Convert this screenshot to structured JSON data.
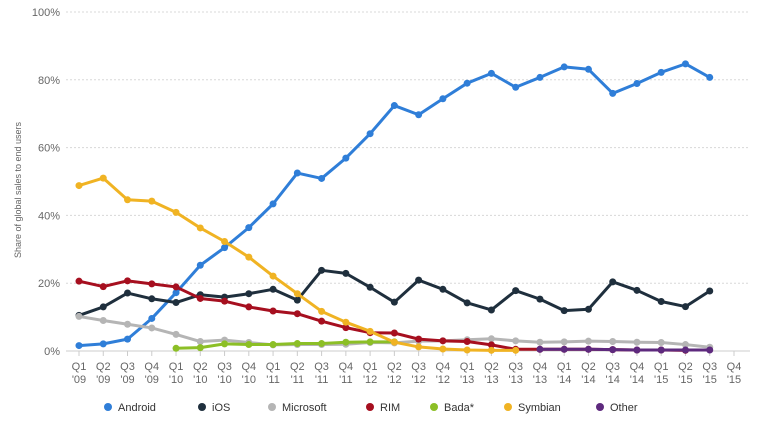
{
  "chart_data": {
    "type": "line",
    "title": "",
    "ylabel": "Share of global sales to end users",
    "xlabel": "",
    "ylim": [
      0,
      100
    ],
    "y_ticks": [
      "0%",
      "20%",
      "40%",
      "60%",
      "80%",
      "100%"
    ],
    "grid": "horizontal-dashed",
    "legend_position": "bottom",
    "categories": [
      {
        "q": "Q1",
        "y": "'09"
      },
      {
        "q": "Q2",
        "y": "'09"
      },
      {
        "q": "Q3",
        "y": "'09"
      },
      {
        "q": "Q4",
        "y": "'09"
      },
      {
        "q": "Q1",
        "y": "'10"
      },
      {
        "q": "Q2",
        "y": "'10"
      },
      {
        "q": "Q3",
        "y": "'10"
      },
      {
        "q": "Q4",
        "y": "'10"
      },
      {
        "q": "Q1",
        "y": "'11"
      },
      {
        "q": "Q2",
        "y": "'11"
      },
      {
        "q": "Q3",
        "y": "'11"
      },
      {
        "q": "Q4",
        "y": "'11"
      },
      {
        "q": "Q1",
        "y": "'12"
      },
      {
        "q": "Q2",
        "y": "'12"
      },
      {
        "q": "Q3",
        "y": "'12"
      },
      {
        "q": "Q4",
        "y": "'12"
      },
      {
        "q": "Q1",
        "y": "'13"
      },
      {
        "q": "Q2",
        "y": "'13"
      },
      {
        "q": "Q3",
        "y": "'13"
      },
      {
        "q": "Q4",
        "y": "'13"
      },
      {
        "q": "Q1",
        "y": "'14"
      },
      {
        "q": "Q2",
        "y": "'14"
      },
      {
        "q": "Q3",
        "y": "'14"
      },
      {
        "q": "Q4",
        "y": "'14"
      },
      {
        "q": "Q1",
        "y": "'15"
      },
      {
        "q": "Q2",
        "y": "'15"
      },
      {
        "q": "Q3",
        "y": "'15"
      },
      {
        "q": "Q4",
        "y": "'15"
      }
    ],
    "series": [
      {
        "name": "Android",
        "color": "#2f7ed8",
        "values": [
          1.6,
          2.1,
          3.5,
          9.6,
          17.2,
          25.3,
          30.5,
          36.4,
          43.4,
          52.5,
          50.9,
          56.9,
          64.1,
          72.4,
          69.7,
          74.4,
          79.0,
          81.9,
          77.8,
          80.7,
          83.8,
          83.1,
          76.0,
          78.9,
          82.2,
          84.7,
          80.7,
          null
        ]
      },
      {
        "name": "iOS",
        "color": "#1f2f3d",
        "values": [
          10.5,
          13.0,
          17.1,
          15.4,
          14.3,
          16.6,
          15.9,
          16.9,
          18.2,
          15.0,
          23.8,
          22.9,
          18.8,
          14.4,
          20.9,
          18.2,
          14.2,
          12.1,
          17.8,
          15.3,
          11.9,
          12.3,
          20.4,
          17.9,
          14.6,
          13.1,
          17.7,
          null
        ]
      },
      {
        "name": "Microsoft",
        "color": "#b5b5b5",
        "values": [
          10.2,
          9.0,
          7.9,
          6.8,
          4.9,
          2.8,
          3.2,
          2.5,
          1.8,
          1.9,
          1.9,
          2.0,
          2.5,
          2.4,
          2.9,
          3.0,
          3.3,
          3.6,
          3.0,
          2.6,
          2.7,
          2.9,
          2.8,
          2.6,
          2.5,
          1.9,
          1.1,
          null
        ]
      },
      {
        "name": "RIM",
        "color": "#a60f1f",
        "values": [
          20.6,
          19.0,
          20.7,
          19.8,
          18.9,
          15.5,
          14.7,
          13.0,
          11.8,
          11.0,
          8.8,
          6.9,
          5.4,
          5.3,
          3.5,
          3.0,
          2.8,
          1.8,
          0.5,
          0.5,
          0.5,
          0.5,
          0.4,
          0.3,
          0.3,
          0.2,
          null,
          null
        ]
      },
      {
        "name": "Bada*",
        "color": "#8cbf26",
        "values": [
          null,
          null,
          null,
          null,
          0.8,
          1.0,
          2.1,
          1.9,
          1.9,
          2.2,
          2.2,
          2.6,
          2.7,
          2.7,
          null,
          null,
          null,
          null,
          null,
          null,
          null,
          null,
          null,
          null,
          null,
          null,
          null,
          null
        ]
      },
      {
        "name": "Symbian",
        "color": "#f0b323",
        "values": [
          48.8,
          51.0,
          44.6,
          44.2,
          40.9,
          36.3,
          32.3,
          27.7,
          22.1,
          16.9,
          11.7,
          8.5,
          5.8,
          2.6,
          1.2,
          0.6,
          0.3,
          0.2,
          0.2,
          null,
          null,
          null,
          null,
          null,
          null,
          null,
          null,
          null
        ]
      },
      {
        "name": "Other",
        "color": "#5e2a7e",
        "values": [
          null,
          null,
          null,
          null,
          null,
          null,
          null,
          null,
          null,
          null,
          null,
          null,
          null,
          null,
          null,
          null,
          null,
          null,
          null,
          0.5,
          0.5,
          0.5,
          0.4,
          0.3,
          0.3,
          0.3,
          0.3,
          null
        ]
      }
    ]
  }
}
